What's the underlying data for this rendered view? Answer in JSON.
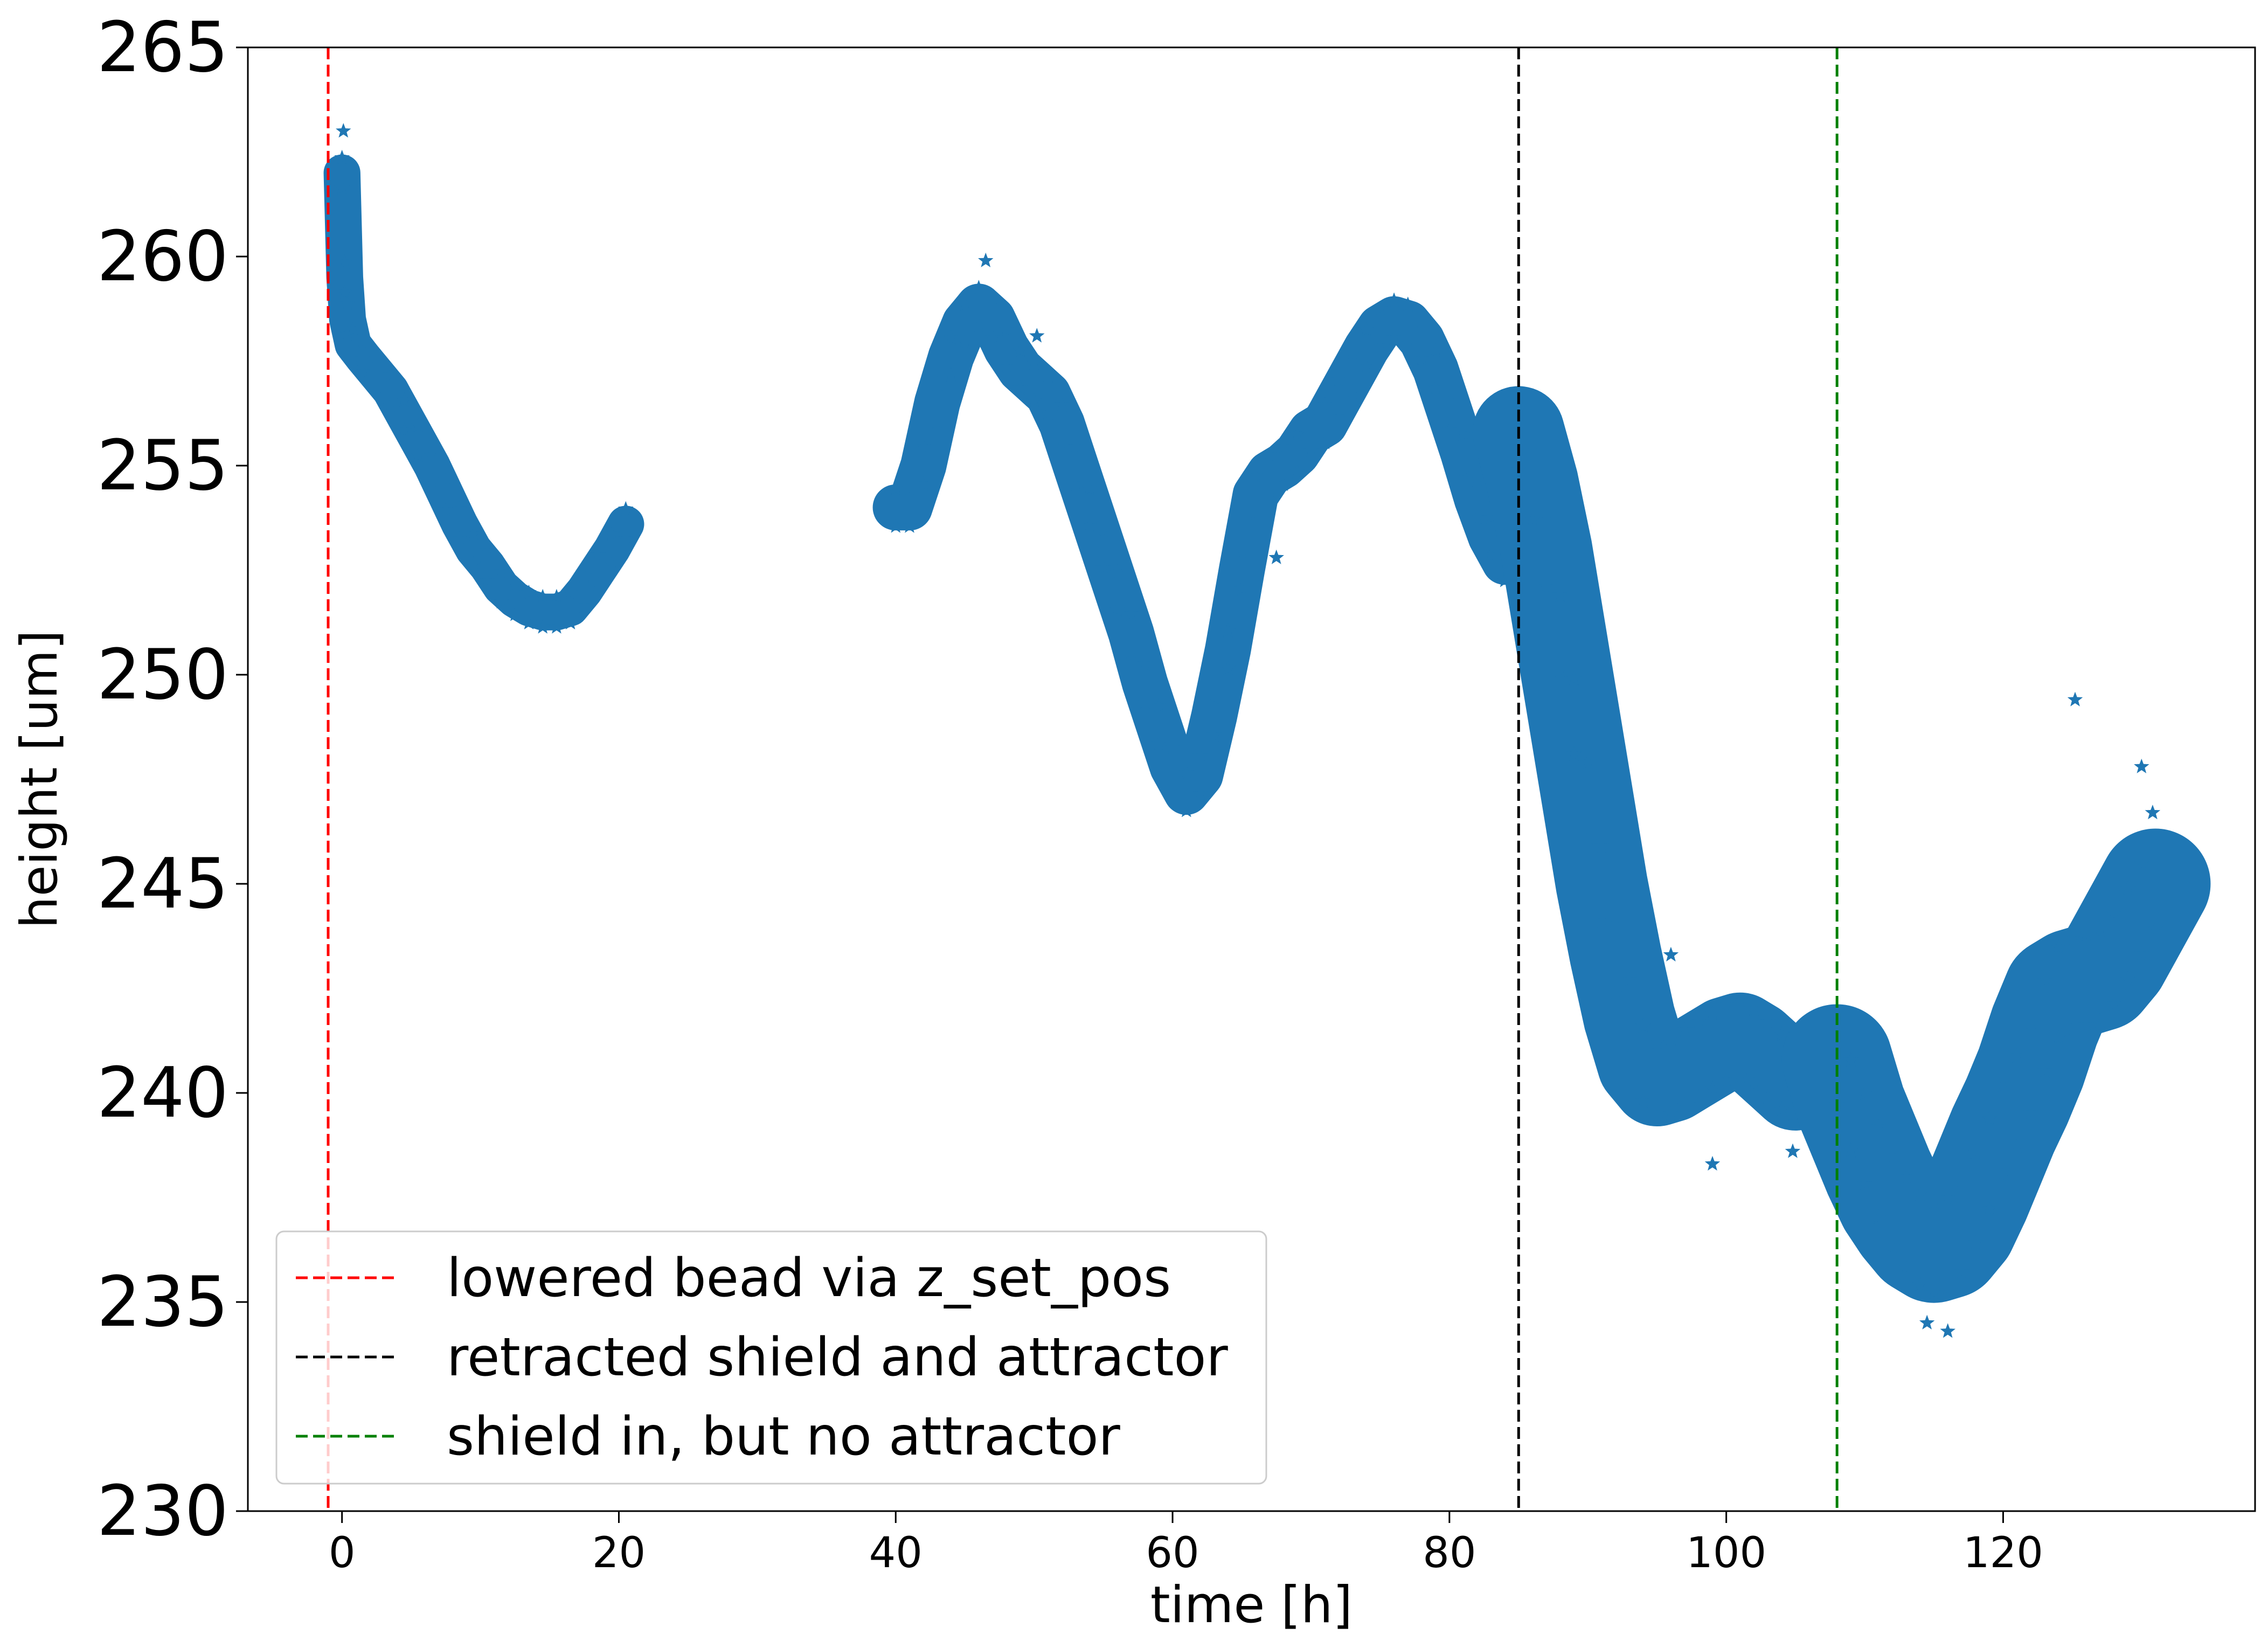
{
  "chart_data": {
    "type": "scatter",
    "xlabel": "time [h]",
    "ylabel": "height [um]",
    "xlim": [
      -6.8,
      138.2
    ],
    "ylim": [
      230,
      265
    ],
    "xticks": [
      0,
      20,
      40,
      60,
      80,
      100,
      120
    ],
    "yticks": [
      230,
      235,
      240,
      245,
      250,
      255,
      260,
      265
    ],
    "grid": false,
    "legend_position": "lower-left",
    "marker": "star",
    "marker_color": "#1f77b4",
    "series": [
      {
        "segments": [
          {
            "x": [
              0,
              0.2,
              0.4,
              0.8,
              1.5,
              2.5,
              3.5,
              4.5,
              5.5,
              6.5,
              7.5,
              8.5,
              9.5,
              10.5,
              11.5,
              12.5,
              13.5,
              14.5,
              15.5,
              16.5,
              17.5,
              18.5,
              19.5,
              20.5
            ],
            "y": [
              262,
              259.5,
              258.5,
              257.9,
              257.6,
              257.2,
              256.8,
              256.2,
              255.6,
              255.0,
              254.3,
              253.6,
              253.0,
              252.6,
              252.1,
              251.8,
              251.6,
              251.5,
              251.5,
              251.6,
              252.0,
              252.5,
              253.0,
              253.6
            ],
            "band": 0.4
          },
          {
            "x": [
              40,
              41,
              42,
              43,
              44,
              45,
              46,
              47,
              48,
              49,
              50,
              51,
              52,
              53,
              54,
              55,
              56,
              57,
              58,
              59,
              60,
              61,
              62,
              63,
              64,
              65,
              66,
              67,
              68,
              69,
              70,
              71,
              72,
              73,
              74,
              75,
              76,
              77,
              78,
              79,
              80,
              81,
              82,
              83,
              84,
              85
            ],
            "y": [
              254.0,
              254.0,
              255.0,
              256.5,
              257.6,
              258.4,
              258.8,
              258.5,
              257.8,
              257.3,
              257.0,
              256.7,
              256.0,
              255.0,
              254.0,
              253.0,
              252.0,
              251.0,
              249.8,
              248.8,
              247.8,
              247.2,
              247.6,
              249.0,
              250.6,
              252.5,
              254.3,
              254.8,
              255.0,
              255.3,
              255.8,
              256.0,
              256.6,
              257.2,
              257.8,
              258.3,
              258.5,
              258.4,
              258.0,
              257.3,
              256.3,
              255.3,
              254.2,
              253.3,
              252.7,
              252.8
            ],
            "band": 0.5
          },
          {
            "x": [
              85,
              86,
              87,
              88,
              89,
              90,
              91,
              92,
              93,
              94,
              95,
              96,
              97,
              98,
              99,
              100,
              101,
              102,
              103,
              104,
              105
            ],
            "y": [
              255.8,
              254.6,
              253.0,
              251.0,
              249.0,
              247.0,
              245.0,
              243.3,
              241.8,
              240.7,
              240.3,
              240.4,
              240.6,
              240.8,
              241.0,
              241.2,
              241.3,
              241.1,
              240.8,
              240.5,
              240.2
            ],
            "band": 1.0
          },
          {
            "x": [
              108,
              109,
              110,
              111,
              112,
              113,
              114,
              115,
              116,
              117,
              118,
              119,
              120,
              121,
              122,
              123,
              124,
              125,
              126,
              127,
              128,
              129,
              130,
              131
            ],
            "y": [
              240.8,
              239.7,
              238.9,
              238.1,
              237.4,
              236.9,
              236.5,
              236.3,
              236.4,
              236.8,
              237.5,
              238.3,
              239.1,
              239.8,
              240.6,
              241.6,
              242.4,
              242.6,
              242.7,
              242.8,
              243.2,
              243.8,
              244.4,
              245.0
            ],
            "band": 1.2
          }
        ],
        "outliers": [
          {
            "x": 0.1,
            "y": 263.0
          },
          {
            "x": 46.5,
            "y": 259.9
          },
          {
            "x": 50.2,
            "y": 258.1
          },
          {
            "x": 67.5,
            "y": 252.8
          },
          {
            "x": 96.0,
            "y": 243.3
          },
          {
            "x": 99.0,
            "y": 238.3
          },
          {
            "x": 104.8,
            "y": 238.6
          },
          {
            "x": 116.0,
            "y": 234.3
          },
          {
            "x": 114.5,
            "y": 234.5
          },
          {
            "x": 125.2,
            "y": 249.4
          },
          {
            "x": 130.0,
            "y": 247.8
          },
          {
            "x": 130.8,
            "y": 246.7
          }
        ]
      }
    ],
    "vlines": [
      {
        "x": -1.0,
        "color": "#ff0000",
        "style": "dashed",
        "label": "lowered bead via z_set_pos"
      },
      {
        "x": 85.0,
        "color": "#000000",
        "style": "dashed",
        "label": "retracted shield and attractor"
      },
      {
        "x": 108.0,
        "color": "#008000",
        "style": "dashed",
        "label": "shield in, but no attractor"
      }
    ]
  }
}
